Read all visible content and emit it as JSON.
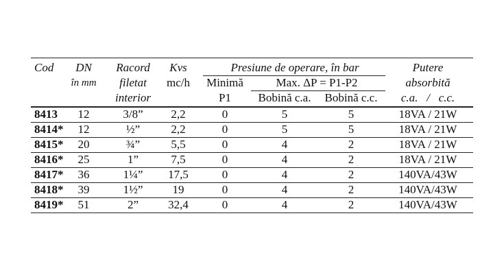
{
  "header": {
    "cod": "Cod",
    "dn": [
      "DN",
      "în mm"
    ],
    "racord": [
      "Racord",
      "filetat",
      "interior"
    ],
    "kvs": [
      "Kvs",
      "mc/h"
    ],
    "presiune": "Presiune de operare, în bar",
    "minima": [
      "Minimă",
      "P1"
    ],
    "max": "Max. ΔP = P1-P2",
    "bobina_ca": "Bobină c.a.",
    "bobina_cc": "Bobină c.c.",
    "putere": [
      "Putere",
      "absorbită"
    ],
    "putere_sub": "c.a.   /   c.c."
  },
  "rows": [
    [
      "8413",
      "12",
      "3/8”",
      "2,2",
      "0",
      "5",
      "5",
      "18VA / 21W"
    ],
    [
      "8414*",
      "12",
      "½”",
      "2,2",
      "0",
      "5",
      "5",
      "18VA / 21W"
    ],
    [
      "8415*",
      "20",
      "¾”",
      "5,5",
      "0",
      "4",
      "2",
      "18VA / 21W"
    ],
    [
      "8416*",
      "25",
      "1”",
      "7,5",
      "0",
      "4",
      "2",
      "18VA / 21W"
    ],
    [
      "8417*",
      "36",
      "1¼”",
      "17,5",
      "0",
      "4",
      "2",
      "140VA/43W"
    ],
    [
      "8418*",
      "39",
      "1½”",
      "19",
      "0",
      "4",
      "2",
      "140VA/43W"
    ],
    [
      "8419*",
      "51",
      "2”",
      "32,4",
      "0",
      "4",
      "2",
      "140VA/43W"
    ]
  ]
}
